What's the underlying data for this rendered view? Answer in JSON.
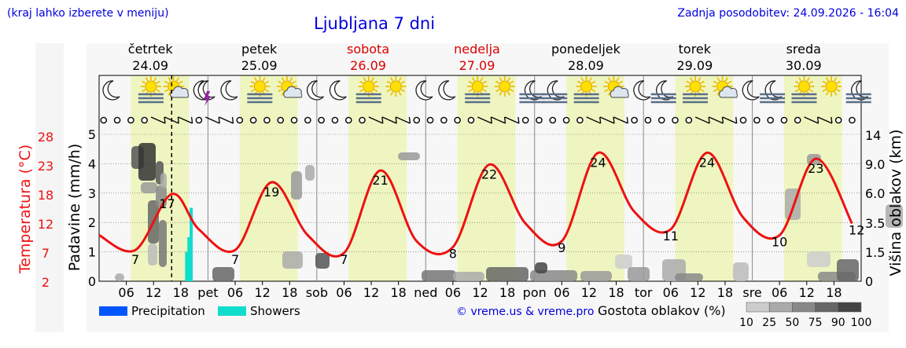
{
  "header": {
    "note": "(kraj lahko izberete v meniju)",
    "title": "Ljubljana 7 dni",
    "updated": "Zadnja posodobitev: 24.09.2026 - 16:04"
  },
  "days": [
    {
      "name": "četrtek",
      "date": "24.09",
      "weekend": false,
      "abbr": ""
    },
    {
      "name": "petek",
      "date": "25.09",
      "weekend": false,
      "abbr": "pet"
    },
    {
      "name": "sobota",
      "date": "26.09",
      "weekend": true,
      "abbr": "sob"
    },
    {
      "name": "nedelja",
      "date": "27.09",
      "weekend": true,
      "abbr": "ned"
    },
    {
      "name": "ponedeljek",
      "date": "28.09",
      "weekend": false,
      "abbr": "pon"
    },
    {
      "name": "torek",
      "date": "29.09",
      "weekend": false,
      "abbr": "tor"
    },
    {
      "name": "sreda",
      "date": "30.09",
      "weekend": false,
      "abbr": "sre"
    }
  ],
  "hour_ticks": [
    "06",
    "12",
    "18"
  ],
  "axes": {
    "left_temp_label": "Temperatura (°C)",
    "left_temp_ticks": [
      2,
      7,
      12,
      18,
      23,
      28
    ],
    "left_precip_label": "Padavine (mm/h)",
    "left_precip_ticks": [
      0,
      1,
      2,
      3,
      4,
      5
    ],
    "right_label": "Višina oblakov (km)",
    "right_ticks": [
      "0",
      "1.5",
      "3.5",
      "6.0",
      "9.0",
      "14"
    ]
  },
  "legend": {
    "precipitation": "Precipitation",
    "showers": "Showers",
    "credit": "© vreme.us & vreme.pro",
    "cloud_density_label": "Gostota oblakov (%)",
    "cloud_density_ticks": [
      "10",
      "25",
      "50",
      "75",
      "90",
      "100"
    ]
  },
  "colors": {
    "temperature": "#ee1111",
    "precipitation": "#0055ff",
    "showers": "#11ddcc",
    "daylight": "#eef5c0",
    "weekend_text": "#dd0000",
    "title": "#0000dd"
  },
  "chart_data": {
    "type": "line",
    "x_unit": "hours since 24.09 00:00",
    "temperature": {
      "x": [
        0,
        8,
        16,
        22,
        30,
        38,
        46,
        54,
        62,
        70,
        78,
        86,
        94,
        102,
        110,
        118,
        126,
        134,
        142,
        150,
        158,
        166
      ],
      "y": [
        10,
        7.5,
        17,
        11,
        7.5,
        19,
        10,
        7,
        21,
        9,
        8,
        22,
        12,
        9,
        24,
        14,
        11,
        24,
        13,
        10,
        23,
        12
      ]
    },
    "temperature_labels": [
      {
        "x": 8,
        "value": 7
      },
      {
        "x": 15,
        "value": 17
      },
      {
        "x": 30,
        "value": 7
      },
      {
        "x": 38,
        "value": 19
      },
      {
        "x": 54,
        "value": 7
      },
      {
        "x": 62,
        "value": 21
      },
      {
        "x": 78,
        "value": 8
      },
      {
        "x": 86,
        "value": 22
      },
      {
        "x": 102,
        "value": 9
      },
      {
        "x": 110,
        "value": 24
      },
      {
        "x": 126,
        "value": 11
      },
      {
        "x": 134,
        "value": 24
      },
      {
        "x": 150,
        "value": 10
      },
      {
        "x": 158,
        "value": 23
      },
      {
        "x": 167,
        "value": 12
      }
    ],
    "showers": [
      {
        "x": 19.3,
        "value": 1.0
      },
      {
        "x": 19.8,
        "value": 1.5
      },
      {
        "x": 20.3,
        "value": 2.5
      }
    ],
    "now_x": 16
  }
}
